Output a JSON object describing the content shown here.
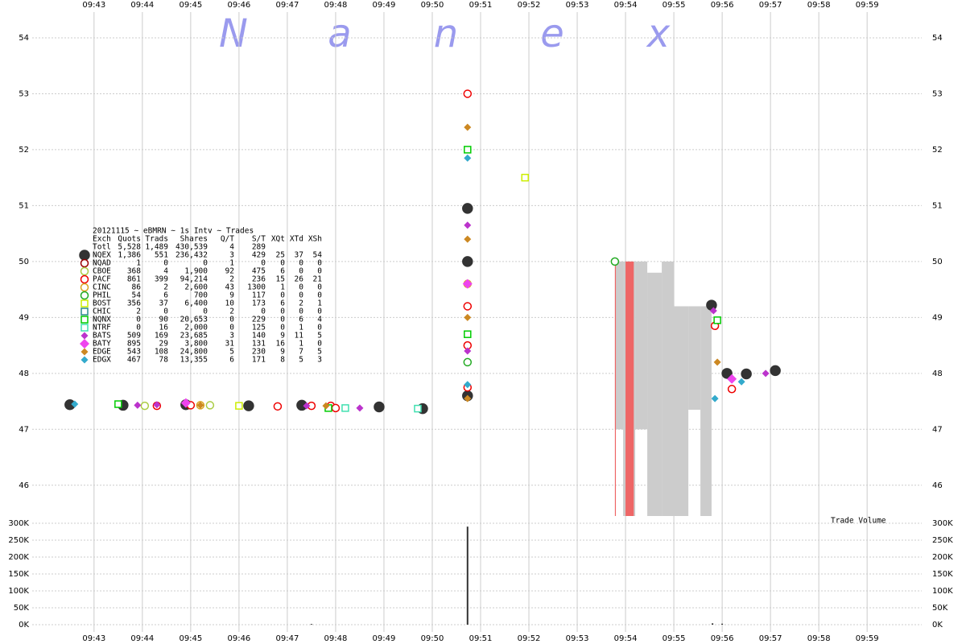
{
  "chart_data": {
    "type": "scatter",
    "title": "20121115 ~ eBMRN ~ 1s Intv ~ Trades",
    "watermark": [
      "N",
      "a",
      "n",
      "e",
      "x"
    ],
    "volume_label": "Trade Volume",
    "xlim": [
      41.72,
      60.13
    ],
    "xticks": [
      {
        "value": 43,
        "label": "09:43"
      },
      {
        "value": 44,
        "label": "09:44"
      },
      {
        "value": 45,
        "label": "09:45"
      },
      {
        "value": 46,
        "label": "09:46"
      },
      {
        "value": 47,
        "label": "09:47"
      },
      {
        "value": 48,
        "label": "09:48"
      },
      {
        "value": 49,
        "label": "09:49"
      },
      {
        "value": 50,
        "label": "09:50"
      },
      {
        "value": 51,
        "label": "09:51"
      },
      {
        "value": 52,
        "label": "09:52"
      },
      {
        "value": 53,
        "label": "09:53"
      },
      {
        "value": 54,
        "label": "09:54"
      },
      {
        "value": 55,
        "label": "09:55"
      },
      {
        "value": 56,
        "label": "09:56"
      },
      {
        "value": 57,
        "label": "09:57"
      },
      {
        "value": 58,
        "label": "09:58"
      },
      {
        "value": 59,
        "label": "09:59"
      }
    ],
    "ylim": [
      45.45,
      54.46
    ],
    "yticks": [
      46,
      47,
      48,
      49,
      50,
      51,
      52,
      53,
      54
    ],
    "grid": true,
    "table_columns": [
      "Exch",
      "Quots",
      "Trads",
      "Shares",
      "Q/T",
      "S/T",
      "XQt",
      "XTd",
      "XSh"
    ],
    "totals": [
      "Totl",
      "5,528",
      "1,489",
      "430,539",
      "4",
      "289"
    ],
    "series": [
      {
        "name": "NQEX",
        "color": "#333333",
        "marker": "bigcircle",
        "stats": [
          "1,386",
          "551",
          "236,432",
          "3",
          "429",
          "25",
          "37",
          "54"
        ],
        "x": [
          42.5,
          43.6,
          44.9,
          46.2,
          47.3,
          48.9,
          49.8,
          50.73,
          50.73,
          50.73,
          55.78,
          56.1,
          56.5,
          57.1
        ],
        "values": [
          47.44,
          47.43,
          47.44,
          47.42,
          47.43,
          47.4,
          47.37,
          47.6,
          50.0,
          50.95,
          49.22,
          48.0,
          47.99,
          48.05
        ]
      },
      {
        "name": "NQAD",
        "color": "#990000",
        "marker": "circle",
        "stats": [
          "1",
          "0",
          "0",
          "1",
          "0",
          "0",
          "0",
          "0"
        ],
        "x": [],
        "values": []
      },
      {
        "name": "CBOE",
        "color": "#aacc44",
        "marker": "circle",
        "stats": [
          "368",
          "4",
          "1,900",
          "92",
          "475",
          "6",
          "0",
          "0"
        ],
        "x": [
          44.05,
          45.4
        ],
        "values": [
          47.42,
          47.43
        ]
      },
      {
        "name": "PACF",
        "color": "#ee0000",
        "marker": "circle",
        "stats": [
          "861",
          "399",
          "94,214",
          "2",
          "236",
          "15",
          "26",
          "21"
        ],
        "x": [
          44.3,
          45.0,
          46.8,
          47.5,
          47.9,
          48.0,
          50.73,
          50.73,
          50.73,
          50.73,
          55.85,
          56.2
        ],
        "values": [
          47.42,
          47.43,
          47.41,
          47.42,
          47.42,
          47.38,
          47.75,
          48.5,
          49.2,
          53.0,
          48.85,
          47.72
        ]
      },
      {
        "name": "CINC",
        "color": "#daa520",
        "marker": "circle",
        "stats": [
          "86",
          "2",
          "2,600",
          "43",
          "1300",
          "1",
          "0",
          "0"
        ],
        "x": [
          45.2,
          50.73
        ],
        "values": [
          47.43,
          49.6
        ]
      },
      {
        "name": "PHIL",
        "color": "#22aa22",
        "marker": "circle",
        "stats": [
          "54",
          "6",
          "700",
          "9",
          "117",
          "0",
          "0",
          "0"
        ],
        "x": [
          50.73,
          53.78
        ],
        "values": [
          48.2,
          50.0
        ]
      },
      {
        "name": "BOST",
        "color": "#ccee00",
        "marker": "square",
        "stats": [
          "356",
          "37",
          "6,400",
          "10",
          "173",
          "6",
          "2",
          "1"
        ],
        "x": [
          46.0,
          51.92
        ],
        "values": [
          47.42,
          51.5
        ]
      },
      {
        "name": "CHIC",
        "color": "#2a8a8a",
        "marker": "square",
        "stats": [
          "2",
          "0",
          "0",
          "2",
          "0",
          "0",
          "0",
          "0"
        ],
        "x": [],
        "values": []
      },
      {
        "name": "NQNX",
        "color": "#00cc00",
        "marker": "square",
        "stats": [
          "0",
          "90",
          "20,653",
          "0",
          "229",
          "0",
          "6",
          "4"
        ],
        "x": [
          43.5,
          47.85,
          50.73,
          50.73,
          55.9
        ],
        "values": [
          47.45,
          47.38,
          52.0,
          48.7,
          48.95
        ]
      },
      {
        "name": "NTRF",
        "color": "#40e0b0",
        "marker": "square",
        "stats": [
          "0",
          "16",
          "2,000",
          "0",
          "125",
          "0",
          "1",
          "0"
        ],
        "x": [
          48.2,
          49.7
        ],
        "values": [
          47.38,
          47.37
        ]
      },
      {
        "name": "BATS",
        "color": "#bb33cc",
        "marker": "diamond",
        "stats": [
          "509",
          "169",
          "23,685",
          "3",
          "140",
          "9",
          "11",
          "5"
        ],
        "x": [
          43.9,
          44.3,
          47.4,
          48.5,
          50.73,
          50.73,
          55.82,
          56.9
        ],
        "values": [
          47.43,
          47.44,
          47.42,
          47.38,
          48.4,
          50.65,
          49.12,
          48.0
        ]
      },
      {
        "name": "BATY",
        "color": "#ee44ee",
        "marker": "bigdiamond",
        "stats": [
          "895",
          "29",
          "3,800",
          "31",
          "131",
          "16",
          "1",
          "0"
        ],
        "x": [
          44.9,
          50.73,
          56.2
        ],
        "values": [
          47.47,
          49.6,
          47.9
        ]
      },
      {
        "name": "EDGE",
        "color": "#cc8822",
        "marker": "diamond",
        "stats": [
          "543",
          "108",
          "24,800",
          "5",
          "230",
          "9",
          "7",
          "5"
        ],
        "x": [
          45.2,
          47.8,
          50.73,
          50.73,
          50.73,
          50.73,
          55.9
        ],
        "values": [
          47.43,
          47.42,
          52.4,
          50.4,
          49.0,
          47.55,
          48.2
        ]
      },
      {
        "name": "EDGX",
        "color": "#33aacc",
        "marker": "diamond",
        "stats": [
          "467",
          "78",
          "13,355",
          "6",
          "171",
          "8",
          "5",
          "3"
        ],
        "x": [
          42.6,
          50.73,
          50.73,
          55.85,
          56.4
        ],
        "values": [
          47.45,
          51.85,
          47.8,
          47.55,
          47.85
        ]
      }
    ],
    "bands": [
      {
        "color": "#cccccc",
        "x0": [
          53.78,
          53.95,
          54.2,
          54.45,
          54.75,
          55.0,
          55.3,
          55.55
        ],
        "x1": [
          53.95,
          54.2,
          54.45,
          54.75,
          55.0,
          55.3,
          55.55,
          55.78
        ],
        "low": [
          47.0,
          45.45,
          47.0,
          45.45,
          45.45,
          45.45,
          47.35,
          45.45
        ],
        "high": [
          50.0,
          50.0,
          50.0,
          49.8,
          50.0,
          49.2,
          49.2,
          49.2
        ]
      },
      {
        "color": "#ee6666",
        "x0": [
          53.78,
          54.0
        ],
        "x1": [
          53.8,
          54.17
        ],
        "low": [
          45.45,
          45.45
        ],
        "high": [
          50.0,
          50.0
        ]
      }
    ],
    "volume": {
      "color": "#333333",
      "x": [
        47.5,
        50.73,
        55.8,
        56.0
      ],
      "values": [
        2000,
        290000,
        4000,
        3000
      ],
      "ylim": [
        0,
        300000
      ],
      "yticks": [
        {
          "value": 0,
          "label": "0K"
        },
        {
          "value": 50000,
          "label": "50K"
        },
        {
          "value": 100000,
          "label": "100K"
        },
        {
          "value": 150000,
          "label": "150K"
        },
        {
          "value": 200000,
          "label": "200K"
        },
        {
          "value": 250000,
          "label": "250K"
        },
        {
          "value": 300000,
          "label": "300K"
        }
      ]
    }
  }
}
